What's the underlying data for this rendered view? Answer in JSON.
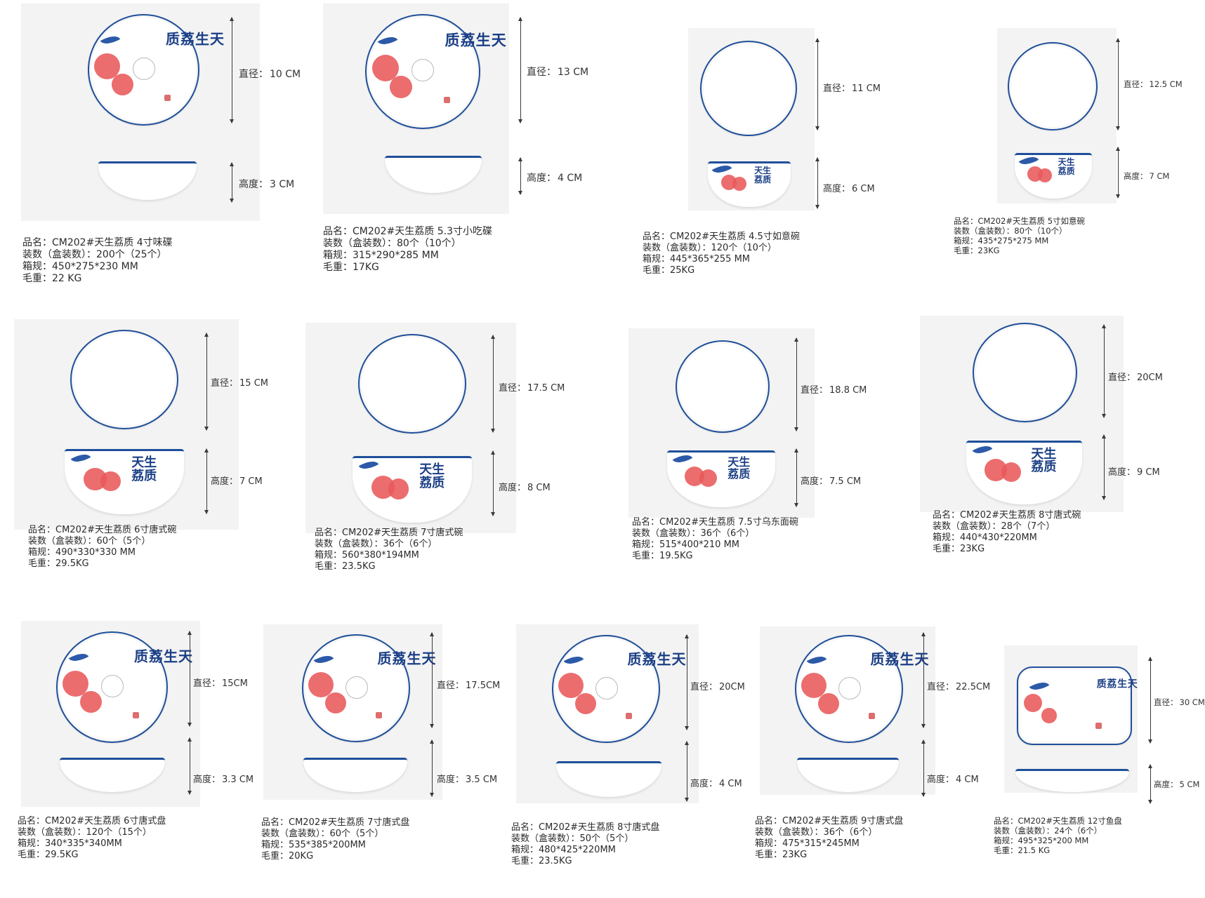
{
  "labels": {
    "diameter": "直径：",
    "height": "高度：",
    "name": "品名：",
    "packing": "装数（盒装数）：",
    "carton": "箱规：",
    "weight": "毛重："
  },
  "brand_text": "天生荔质",
  "colors": {
    "rim_blue": "#1f4f9a",
    "lychee_red": "#e8595a",
    "brush_blue": "#1b3f86"
  },
  "products": [
    {
      "name": "CM202#天生荔质 4寸味碟",
      "diameter": "10 CM",
      "height": "3 CM",
      "packing": "200个（25个）",
      "carton": "450*275*230 MM",
      "weight": "22 KG"
    },
    {
      "name": "CM202#天生荔质 5.3寸小吃碟",
      "diameter": "13 CM",
      "height": "4 CM",
      "packing": "80个（10个）",
      "carton": "315*290*285 MM",
      "weight": "17KG"
    },
    {
      "name": "CM202#天生荔质 4.5寸如意碗",
      "diameter": "11 CM",
      "height": "6 CM",
      "packing": "120个（10个）",
      "carton": "445*365*255 MM",
      "weight": "25KG"
    },
    {
      "name": "CM202#天生荔质 5寸如意碗",
      "diameter": "12.5 CM",
      "height": "7 CM",
      "packing": "80个（10个）",
      "carton": "435*275*275 MM",
      "weight": "23KG"
    },
    {
      "name": "CM202#天生荔质 6寸唐式碗",
      "diameter": "15 CM",
      "height": "7 CM",
      "packing": "60个（5个）",
      "carton": "490*330*330 MM",
      "weight": "29.5KG"
    },
    {
      "name": "CM202#天生荔质 7寸唐式碗",
      "diameter": "17.5 CM",
      "height": "8 CM",
      "packing": "36个（6个）",
      "carton": "560*380*194MM",
      "weight": "23.5KG"
    },
    {
      "name": "CM202#天生荔质 7.5寸乌东面碗",
      "diameter": "18.8 CM",
      "height": "7.5 CM",
      "packing": "36个（6个）",
      "carton": "515*400*210 MM",
      "weight": "19.5KG"
    },
    {
      "name": "CM202#天生荔质 8寸唐式碗",
      "diameter": "20CM",
      "height": "9 CM",
      "packing": "28个（7个）",
      "carton": "440*430*220MM",
      "weight": "23KG"
    },
    {
      "name": "CM202#天生荔质 6寸唐式盘",
      "diameter": "15CM",
      "height": "3.3 CM",
      "packing": "120个（15个）",
      "carton": "340*335*340MM",
      "weight": "29.5KG"
    },
    {
      "name": "CM202#天生荔质 7寸唐式盘",
      "diameter": "17.5CM",
      "height": "3.5 CM",
      "packing": "60个（5个）",
      "carton": "535*385*200MM",
      "weight": "20KG"
    },
    {
      "name": "CM202#天生荔质 8寸唐式盘",
      "diameter": "20CM",
      "height": "4 CM",
      "packing": "50个（5个）",
      "carton": "480*425*220MM",
      "weight": "23.5KG"
    },
    {
      "name": "CM202#天生荔质 9寸唐式盘",
      "diameter": "22.5CM",
      "height": "4 CM",
      "packing": "36个（6个）",
      "carton": "475*315*245MM",
      "weight": "23KG"
    },
    {
      "name": "CM202#天生荔质 12寸鱼盘",
      "diameter": "30 CM",
      "height": "5 CM",
      "packing": "24个（6个）",
      "carton": "495*325*200 MM",
      "weight": "21.5 KG"
    }
  ]
}
